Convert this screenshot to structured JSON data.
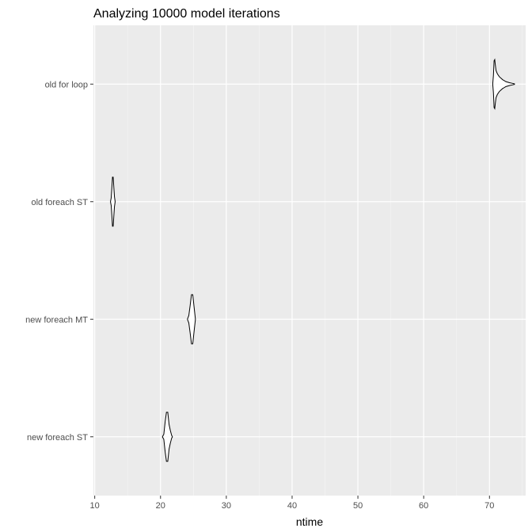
{
  "chart_data": {
    "type": "violin",
    "title": "Analyzing 10000 model iterations",
    "xlabel": "ntime",
    "ylabel": "",
    "xlim": [
      9.8,
      75.5
    ],
    "x_ticks": [
      10,
      20,
      30,
      40,
      50,
      60,
      70
    ],
    "grid": true,
    "colors": {
      "panel": "#ebebeb",
      "grid_major": "#ffffff",
      "grid_minor": "#f5f5f5",
      "outline": "#000000",
      "fill": "#ffffff"
    },
    "categories": [
      "old for loop",
      "old foreach ST",
      "new foreach MT",
      "new foreach ST"
    ],
    "series": [
      {
        "category": "old for loop",
        "range": [
          70.5,
          73.8
        ],
        "profile": [
          [
            70.5,
            0.02
          ],
          [
            70.6,
            0.35
          ],
          [
            70.7,
            0.95
          ],
          [
            70.8,
            1.0
          ],
          [
            70.9,
            0.75
          ],
          [
            71.0,
            0.55
          ],
          [
            71.2,
            0.42
          ],
          [
            71.5,
            0.3
          ],
          [
            72.0,
            0.18
          ],
          [
            72.5,
            0.1
          ],
          [
            73.0,
            0.06
          ],
          [
            73.5,
            0.03
          ],
          [
            73.8,
            0.01
          ]
        ]
      },
      {
        "category": "old foreach ST",
        "range": [
          12.4,
          13.1
        ],
        "profile": [
          [
            12.4,
            0.01
          ],
          [
            12.5,
            0.15
          ],
          [
            12.6,
            0.55
          ],
          [
            12.7,
            1.0
          ],
          [
            12.8,
            1.0
          ],
          [
            12.9,
            0.6
          ],
          [
            13.0,
            0.2
          ],
          [
            13.1,
            0.01
          ]
        ]
      },
      {
        "category": "new foreach MT",
        "range": [
          24.1,
          25.3
        ],
        "profile": [
          [
            24.1,
            0.01
          ],
          [
            24.3,
            0.15
          ],
          [
            24.5,
            0.55
          ],
          [
            24.7,
            1.0
          ],
          [
            24.9,
            1.0
          ],
          [
            25.1,
            0.5
          ],
          [
            25.3,
            0.01
          ]
        ]
      },
      {
        "category": "new foreach ST",
        "range": [
          20.3,
          21.8
        ],
        "profile": [
          [
            20.3,
            0.01
          ],
          [
            20.5,
            0.1
          ],
          [
            20.7,
            0.6
          ],
          [
            20.9,
            1.0
          ],
          [
            21.1,
            1.0
          ],
          [
            21.3,
            0.5
          ],
          [
            21.5,
            0.25
          ],
          [
            21.7,
            0.05
          ],
          [
            21.8,
            0.01
          ]
        ]
      }
    ]
  }
}
